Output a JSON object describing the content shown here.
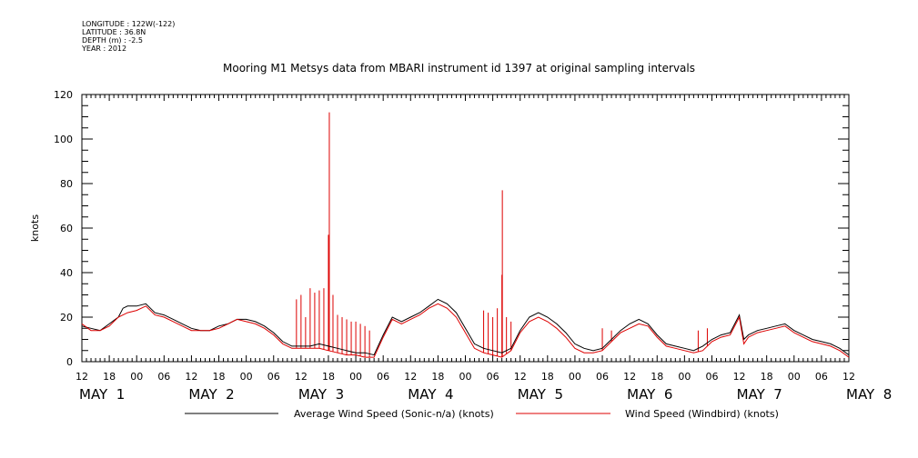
{
  "header": {
    "longitude": "LONGITUDE : 122W(-122)",
    "latitude": "LATITUDE : 36.8N",
    "depth": "DEPTH (m) : -2.5",
    "year": "YEAR : 2012",
    "title": "Mooring M1 Metsys data from MBARI instrument id 1397 at original sampling intervals"
  },
  "chart_data": {
    "type": "line",
    "ylabel": "knots",
    "ylim": [
      0,
      120
    ],
    "yticks": [
      "0",
      "20",
      "40",
      "60",
      "80",
      "100",
      "120"
    ],
    "xlim_hours": [
      0,
      168
    ],
    "x_start": "MAY 1 12:00 2012",
    "xticks": [
      "12",
      "18",
      "00",
      "06",
      "12",
      "18",
      "00",
      "06",
      "12",
      "18",
      "00",
      "06",
      "12",
      "18",
      "00",
      "06",
      "12",
      "18",
      "00",
      "06",
      "12",
      "18",
      "00",
      "06",
      "12",
      "18",
      "00",
      "06",
      "12"
    ],
    "day_labels": [
      "MAY  1",
      "MAY  2",
      "MAY  3",
      "MAY  4",
      "MAY  5",
      "MAY  6",
      "MAY  7",
      "MAY  8"
    ],
    "series": [
      {
        "name": "Average Wind Speed (Sonic-n/a) (knots)",
        "color": "#000000",
        "points": [
          [
            0,
            16
          ],
          [
            2,
            15
          ],
          [
            4,
            14
          ],
          [
            6,
            17
          ],
          [
            8,
            20
          ],
          [
            9,
            24
          ],
          [
            10,
            25
          ],
          [
            12,
            25
          ],
          [
            14,
            26
          ],
          [
            16,
            22
          ],
          [
            18,
            21
          ],
          [
            20,
            19
          ],
          [
            22,
            17
          ],
          [
            24,
            15
          ],
          [
            26,
            14
          ],
          [
            28,
            14
          ],
          [
            30,
            16
          ],
          [
            32,
            17
          ],
          [
            34,
            19
          ],
          [
            36,
            19
          ],
          [
            38,
            18
          ],
          [
            40,
            16
          ],
          [
            42,
            13
          ],
          [
            44,
            9
          ],
          [
            46,
            7
          ],
          [
            48,
            7
          ],
          [
            50,
            7
          ],
          [
            52,
            8
          ],
          [
            54,
            7
          ],
          [
            56,
            6
          ],
          [
            58,
            5
          ],
          [
            60,
            4
          ],
          [
            62,
            4
          ],
          [
            64,
            3
          ],
          [
            66,
            12
          ],
          [
            68,
            20
          ],
          [
            70,
            18
          ],
          [
            72,
            20
          ],
          [
            74,
            22
          ],
          [
            76,
            25
          ],
          [
            78,
            28
          ],
          [
            80,
            26
          ],
          [
            82,
            22
          ],
          [
            84,
            15
          ],
          [
            86,
            8
          ],
          [
            88,
            6
          ],
          [
            90,
            5
          ],
          [
            92,
            4
          ],
          [
            94,
            6
          ],
          [
            96,
            14
          ],
          [
            98,
            20
          ],
          [
            100,
            22
          ],
          [
            102,
            20
          ],
          [
            104,
            17
          ],
          [
            106,
            13
          ],
          [
            108,
            8
          ],
          [
            110,
            6
          ],
          [
            112,
            5
          ],
          [
            114,
            6
          ],
          [
            116,
            10
          ],
          [
            118,
            14
          ],
          [
            120,
            17
          ],
          [
            122,
            19
          ],
          [
            124,
            17
          ],
          [
            126,
            12
          ],
          [
            128,
            8
          ],
          [
            130,
            7
          ],
          [
            132,
            6
          ],
          [
            134,
            5
          ],
          [
            136,
            7
          ],
          [
            138,
            10
          ],
          [
            140,
            12
          ],
          [
            142,
            13
          ],
          [
            144,
            21
          ],
          [
            145,
            10
          ],
          [
            146,
            12
          ],
          [
            148,
            14
          ],
          [
            150,
            15
          ],
          [
            152,
            16
          ],
          [
            154,
            17
          ],
          [
            156,
            14
          ],
          [
            158,
            12
          ],
          [
            160,
            10
          ],
          [
            162,
            9
          ],
          [
            164,
            8
          ],
          [
            166,
            6
          ],
          [
            168,
            3
          ]
        ]
      },
      {
        "name": "Wind Speed (Windbird) (knots)",
        "color": "#dd0000",
        "points": [
          [
            0,
            17
          ],
          [
            2,
            14
          ],
          [
            4,
            14
          ],
          [
            6,
            16
          ],
          [
            8,
            20
          ],
          [
            10,
            22
          ],
          [
            12,
            23
          ],
          [
            14,
            25
          ],
          [
            16,
            21
          ],
          [
            18,
            20
          ],
          [
            20,
            18
          ],
          [
            22,
            16
          ],
          [
            24,
            14
          ],
          [
            26,
            14
          ],
          [
            28,
            14
          ],
          [
            30,
            15
          ],
          [
            32,
            17
          ],
          [
            34,
            19
          ],
          [
            36,
            18
          ],
          [
            38,
            17
          ],
          [
            40,
            15
          ],
          [
            42,
            12
          ],
          [
            44,
            8
          ],
          [
            46,
            6
          ],
          [
            48,
            6
          ],
          [
            50,
            6
          ],
          [
            52,
            6
          ],
          [
            54,
            5
          ],
          [
            56,
            4
          ],
          [
            58,
            3
          ],
          [
            60,
            3
          ],
          [
            62,
            2
          ],
          [
            64,
            2
          ],
          [
            66,
            11
          ],
          [
            68,
            19
          ],
          [
            70,
            17
          ],
          [
            72,
            19
          ],
          [
            74,
            21
          ],
          [
            76,
            24
          ],
          [
            78,
            26
          ],
          [
            80,
            24
          ],
          [
            82,
            20
          ],
          [
            84,
            13
          ],
          [
            86,
            6
          ],
          [
            88,
            4
          ],
          [
            90,
            3
          ],
          [
            92,
            2
          ],
          [
            94,
            5
          ],
          [
            96,
            13
          ],
          [
            98,
            18
          ],
          [
            100,
            20
          ],
          [
            102,
            18
          ],
          [
            104,
            15
          ],
          [
            106,
            11
          ],
          [
            108,
            6
          ],
          [
            110,
            4
          ],
          [
            112,
            4
          ],
          [
            114,
            5
          ],
          [
            116,
            9
          ],
          [
            118,
            13
          ],
          [
            120,
            15
          ],
          [
            122,
            17
          ],
          [
            124,
            16
          ],
          [
            126,
            11
          ],
          [
            128,
            7
          ],
          [
            130,
            6
          ],
          [
            132,
            5
          ],
          [
            134,
            4
          ],
          [
            136,
            5
          ],
          [
            138,
            9
          ],
          [
            140,
            11
          ],
          [
            142,
            12
          ],
          [
            144,
            20
          ],
          [
            145,
            8
          ],
          [
            146,
            11
          ],
          [
            148,
            13
          ],
          [
            150,
            14
          ],
          [
            152,
            15
          ],
          [
            154,
            16
          ],
          [
            156,
            13
          ],
          [
            158,
            11
          ],
          [
            160,
            9
          ],
          [
            162,
            8
          ],
          [
            164,
            7
          ],
          [
            166,
            5
          ],
          [
            168,
            2
          ]
        ]
      }
    ],
    "spikes": [
      {
        "x": 47,
        "y": 28
      },
      {
        "x": 48,
        "y": 30
      },
      {
        "x": 49,
        "y": 20
      },
      {
        "x": 50,
        "y": 33
      },
      {
        "x": 51,
        "y": 31
      },
      {
        "x": 52,
        "y": 32
      },
      {
        "x": 53,
        "y": 33
      },
      {
        "x": 54,
        "y": 57
      },
      {
        "x": 54.2,
        "y": 112
      },
      {
        "x": 55,
        "y": 30
      },
      {
        "x": 56,
        "y": 21
      },
      {
        "x": 57,
        "y": 20
      },
      {
        "x": 58,
        "y": 19
      },
      {
        "x": 59,
        "y": 18
      },
      {
        "x": 60,
        "y": 18
      },
      {
        "x": 61,
        "y": 17
      },
      {
        "x": 62,
        "y": 16
      },
      {
        "x": 63,
        "y": 14
      },
      {
        "x": 88,
        "y": 23
      },
      {
        "x": 89,
        "y": 22
      },
      {
        "x": 90,
        "y": 20
      },
      {
        "x": 91,
        "y": 24
      },
      {
        "x": 92,
        "y": 39
      },
      {
        "x": 92.1,
        "y": 77
      },
      {
        "x": 93,
        "y": 20
      },
      {
        "x": 94,
        "y": 18
      },
      {
        "x": 114,
        "y": 15
      },
      {
        "x": 116,
        "y": 14
      },
      {
        "x": 135,
        "y": 14
      },
      {
        "x": 137,
        "y": 15
      }
    ]
  }
}
